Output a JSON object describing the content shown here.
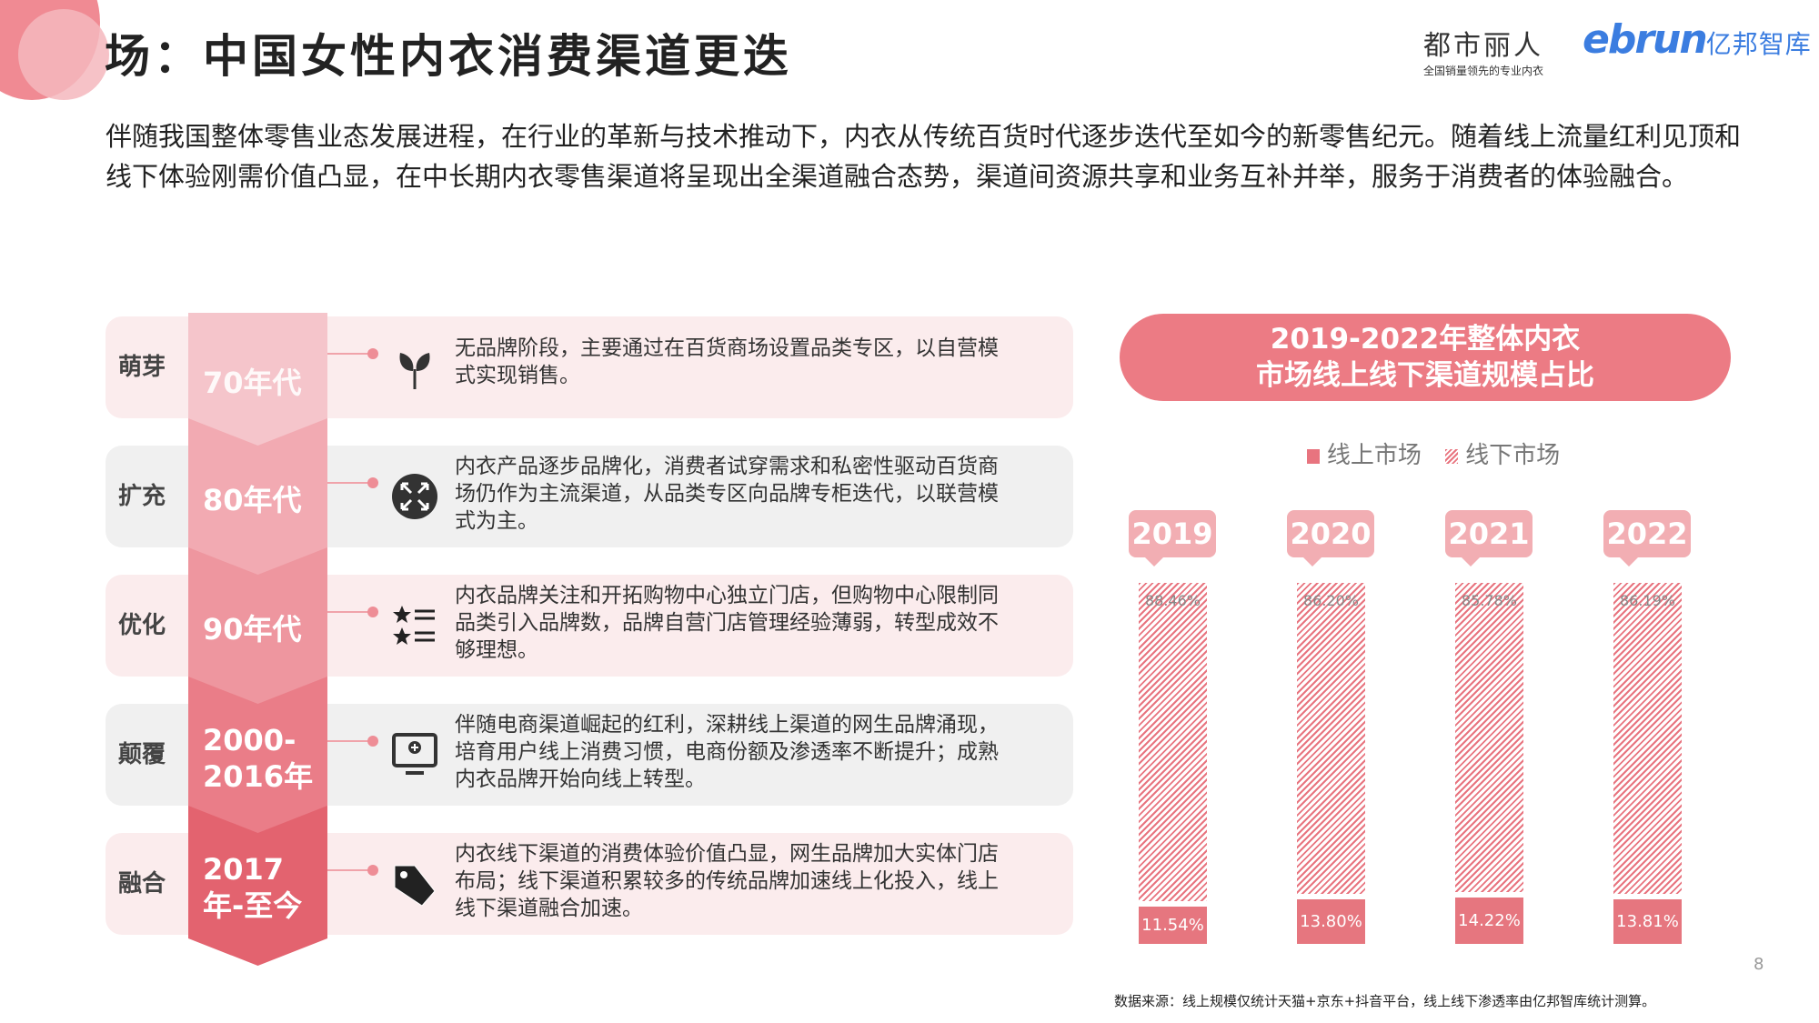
{
  "title": "场：中国女性内衣消费渠道更迭",
  "logos": {
    "brand1": "都市丽人",
    "brand1_tagline": "全国销量领先的专业内衣",
    "brand2_latin": "ebrun",
    "brand2_cn": "亿邦智库"
  },
  "intro": "伴随我国整体零售业态发展进程，在行业的革新与技术推动下，内衣从传统百货时代逐步迭代至如今的新零售纪元。随着线上流量红利见顶和线下体验刚需价值凸显，在中长期内衣零售渠道将呈现出全渠道融合态势，渠道间资源共享和业务互补并举，服务于消费者的体验融合。",
  "timeline": [
    {
      "stage": "萌芽",
      "period": "70年代",
      "icon": "sprout-icon",
      "desc": "无品牌阶段，主要通过在百货商场设置品类专区，以自营模式实现销售。"
    },
    {
      "stage": "扩充",
      "period": "80年代",
      "icon": "expand-arrows-icon",
      "desc": "内衣产品逐步品牌化，消费者试穿需求和私密性驱动百货商场仍作为主流渠道，从品类专区向品牌专柜迭代，以联营模式为主。"
    },
    {
      "stage": "优化",
      "period": "90年代",
      "icon": "star-list-icon",
      "desc": "内衣品牌关注和开拓购物中心独立门店，但购物中心限制同品类引入品牌数，品牌自营门店管理经验薄弱，转型成效不够理想。"
    },
    {
      "stage": "颠覆",
      "period": "2000-2016年",
      "icon": "monitor-icon",
      "desc": "伴随电商渠道崛起的红利，深耕线上渠道的网生品牌涌现，培育用户线上消费习惯，电商份额及渗透率不断提升；成熟内衣品牌开始向线上转型。"
    },
    {
      "stage": "融合",
      "period": "2017年-至今",
      "icon": "price-tag-icon",
      "desc": "内衣线下渠道的消费体验价值凸显，网生品牌加大实体门店布局；线下渠道积累较多的传统品牌加速线上化投入，线上线下渠道融合加速。"
    }
  ],
  "colors": {
    "chevrons": [
      "#f5c5cb",
      "#f2aab2",
      "#ee969f",
      "#ea7d88",
      "#e3636f"
    ],
    "accent": "#e8747f"
  },
  "chart_data": {
    "type": "bar",
    "stacked": true,
    "title": "2019-2022年整体内衣市场线上线下渠道规模占比",
    "title_lines": [
      "2019-2022年整体内衣",
      "市场线上线下渠道规模占比"
    ],
    "categories": [
      "2019",
      "2020",
      "2021",
      "2022"
    ],
    "series": [
      {
        "name": "线上市场",
        "values": [
          11.54,
          13.8,
          14.22,
          13.81
        ],
        "labels": [
          "11.54%",
          "13.80%",
          "14.22%",
          "13.81%"
        ]
      },
      {
        "name": "线下市场",
        "values": [
          88.46,
          86.2,
          85.78,
          86.19
        ],
        "labels": [
          "88.46%",
          "86.20%",
          "85.78%",
          "86.19%"
        ]
      }
    ],
    "ylim": [
      0,
      100
    ],
    "legend": "top-center"
  },
  "source": "数据来源：线上规模仅统计天猫+京东+抖音平台，线上线下渗透率由亿邦智库统计测算。",
  "page_number": "8"
}
